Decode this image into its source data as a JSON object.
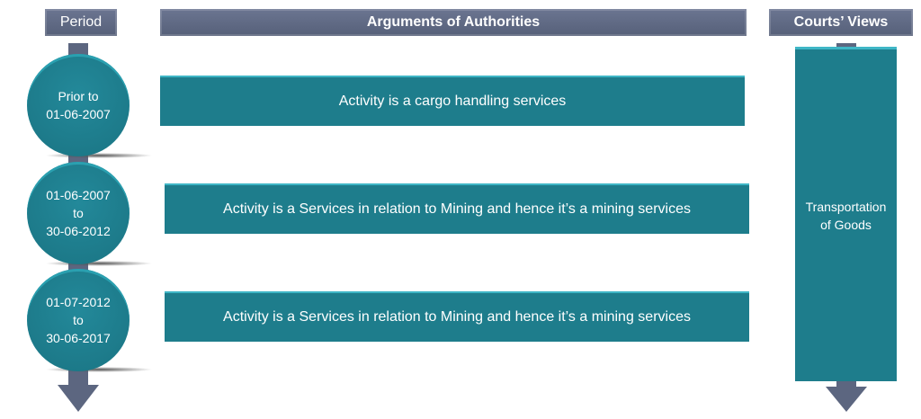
{
  "headers": {
    "period": "Period",
    "arguments": "Arguments of Authorities",
    "courts": "Courts’ Views"
  },
  "rows": [
    {
      "period_lines": [
        "Prior to",
        "01-06-2007"
      ],
      "argument": "Activity is a cargo handling services"
    },
    {
      "period_lines": [
        "01-06-2007",
        "to",
        "30-06-2012"
      ],
      "argument": "Activity is a Services in relation to Mining and hence it’s a mining services"
    },
    {
      "period_lines": [
        "01-07-2012",
        "to",
        "30-06-2017"
      ],
      "argument": "Activity is a Services in relation to Mining and hence it’s a mining services"
    }
  ],
  "court_view": [
    "Transportation",
    "of Goods"
  ],
  "colors": {
    "header": "#5f6a85",
    "teal": "#1e7d8c"
  }
}
